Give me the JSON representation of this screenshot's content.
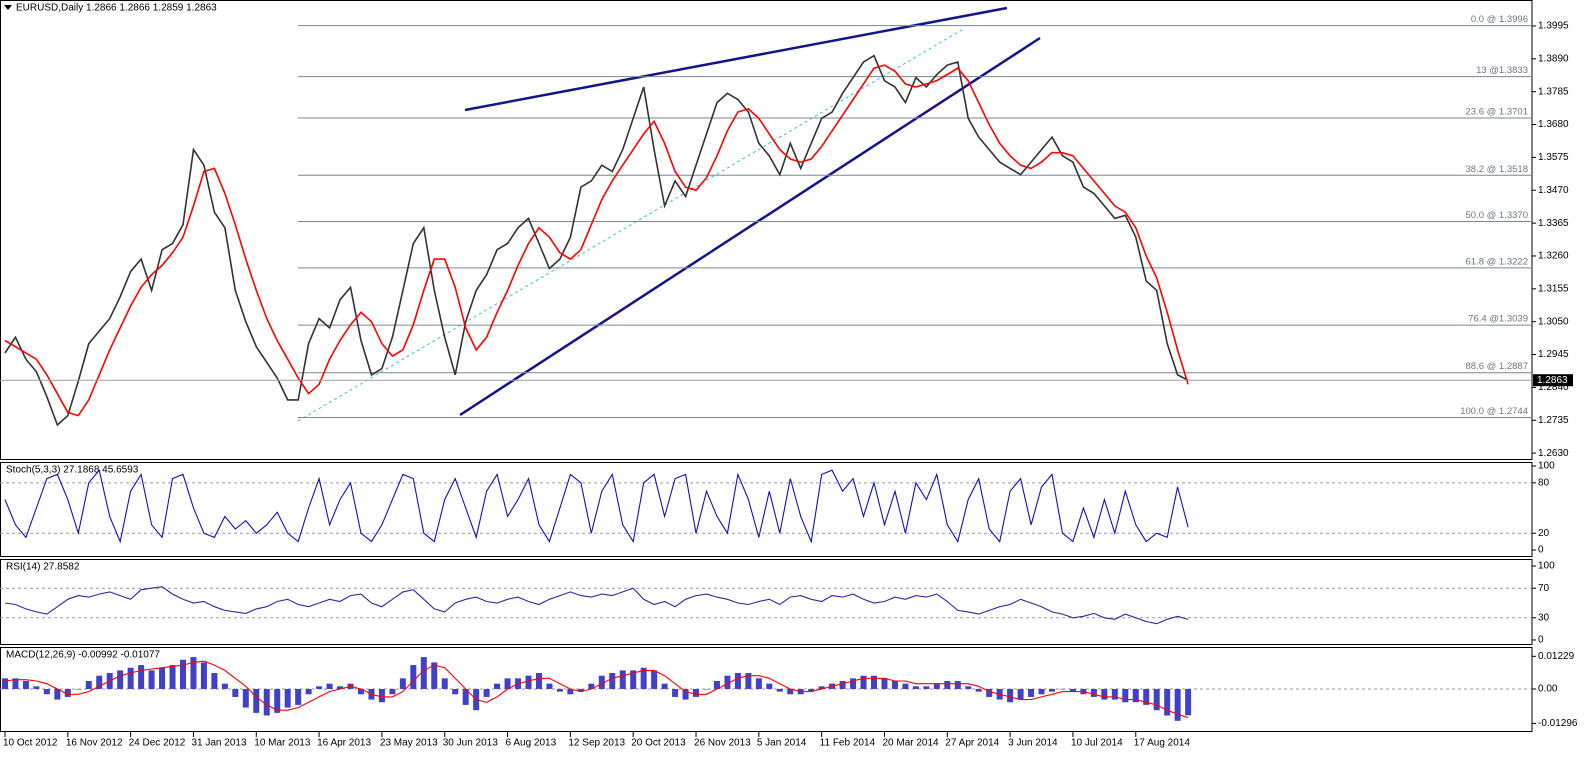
{
  "chart_data": [
    {
      "type": "line",
      "title": "EURUSD,Daily  1.2866 1.2866 1.2859 1.2863",
      "categories": [
        "10 Oct 2012",
        null,
        null,
        null,
        null,
        null,
        "16 Nov 2012",
        null,
        null,
        null,
        null,
        null,
        "24 Dec 2012",
        null,
        null,
        null,
        null,
        null,
        "31 Jan 2013",
        null,
        null,
        null,
        null,
        null,
        "10 Mar 2013",
        null,
        null,
        null,
        null,
        null,
        "16 Apr 2013",
        null,
        null,
        null,
        null,
        null,
        "23 May 2013",
        null,
        null,
        null,
        null,
        null,
        "30 Jun 2013",
        null,
        null,
        null,
        null,
        null,
        "6 Aug 2013",
        null,
        null,
        null,
        null,
        null,
        "12 Sep 2013",
        null,
        null,
        null,
        null,
        null,
        "20 Oct 2013",
        null,
        null,
        null,
        null,
        null,
        "26 Nov 2013",
        null,
        null,
        null,
        null,
        null,
        "5 Jan 2014",
        null,
        null,
        null,
        null,
        null,
        "11 Feb 2014",
        null,
        null,
        null,
        null,
        null,
        "20 Mar 2014",
        null,
        null,
        null,
        null,
        null,
        "27 Apr 2014",
        null,
        null,
        null,
        null,
        null,
        "3 Jun 2014",
        null,
        null,
        null,
        null,
        null,
        "10 Jul 2014",
        null,
        null,
        null,
        null,
        null,
        "17 Aug 2014",
        null,
        null,
        null,
        null,
        null
      ],
      "series": [
        {
          "color": "#333333",
          "values": [
            1.295,
            1.3,
            1.293,
            1.289,
            1.281,
            1.272,
            1.275,
            1.286,
            1.298,
            1.302,
            1.306,
            1.313,
            1.321,
            1.325,
            1.315,
            1.328,
            1.33,
            1.336,
            1.36,
            1.355,
            1.34,
            1.335,
            1.315,
            1.305,
            1.297,
            1.292,
            1.287,
            1.28,
            1.28,
            1.298,
            1.306,
            1.303,
            1.312,
            1.316,
            1.299,
            1.288,
            1.29,
            1.3,
            1.315,
            1.33,
            1.335,
            1.315,
            1.3,
            1.288,
            1.305,
            1.315,
            1.32,
            1.328,
            1.33,
            1.335,
            1.338,
            1.33,
            1.322,
            1.325,
            1.332,
            1.348,
            1.35,
            1.355,
            1.353,
            1.36,
            1.37,
            1.38,
            1.36,
            1.342,
            1.35,
            1.345,
            1.355,
            1.365,
            1.375,
            1.378,
            1.376,
            1.372,
            1.362,
            1.358,
            1.352,
            1.362,
            1.354,
            1.362,
            1.37,
            1.372,
            1.378,
            1.383,
            1.388,
            1.39,
            1.382,
            1.38,
            1.375,
            1.383,
            1.38,
            1.384,
            1.387,
            1.388,
            1.37,
            1.364,
            1.36,
            1.356,
            1.354,
            1.352,
            1.356,
            1.36,
            1.364,
            1.358,
            1.356,
            1.348,
            1.346,
            1.342,
            1.338,
            1.339,
            1.332,
            1.318,
            1.315,
            1.298,
            1.288,
            1.2863
          ]
        },
        {
          "color": "#ff0000",
          "values": [
            1.299,
            1.297,
            1.295,
            1.293,
            1.288,
            1.282,
            1.276,
            1.275,
            1.28,
            1.288,
            1.296,
            1.303,
            1.31,
            1.316,
            1.32,
            1.323,
            1.327,
            1.332,
            1.342,
            1.353,
            1.354,
            1.346,
            1.336,
            1.325,
            1.315,
            1.306,
            1.299,
            1.293,
            1.287,
            1.282,
            1.285,
            1.293,
            1.299,
            1.304,
            1.308,
            1.305,
            1.298,
            1.294,
            1.296,
            1.304,
            1.315,
            1.325,
            1.325,
            1.316,
            1.303,
            1.296,
            1.3,
            1.308,
            1.315,
            1.323,
            1.33,
            1.335,
            1.332,
            1.327,
            1.325,
            1.328,
            1.336,
            1.344,
            1.35,
            1.355,
            1.36,
            1.365,
            1.369,
            1.362,
            1.353,
            1.348,
            1.347,
            1.351,
            1.358,
            1.366,
            1.372,
            1.373,
            1.37,
            1.365,
            1.36,
            1.357,
            1.356,
            1.357,
            1.361,
            1.366,
            1.371,
            1.376,
            1.381,
            1.386,
            1.387,
            1.385,
            1.381,
            1.38,
            1.381,
            1.382,
            1.384,
            1.386,
            1.382,
            1.375,
            1.368,
            1.362,
            1.358,
            1.355,
            1.354,
            1.356,
            1.359,
            1.359,
            1.358,
            1.354,
            1.35,
            1.346,
            1.342,
            1.34,
            1.335,
            1.326,
            1.319,
            1.308,
            1.296,
            1.285
          ]
        }
      ],
      "ylim": [
        1.2608,
        1.4078
      ],
      "yticks": [
        1.3995,
        {
          "value": 1.389,
          "label": "1.3890"
        },
        1.3785,
        {
          "value": 1.368,
          "label": "1.3680"
        },
        1.3575,
        {
          "value": 1.347,
          "label": "1.3470"
        },
        1.3365,
        {
          "value": 1.326,
          "label": "1.3260"
        },
        1.3155,
        {
          "value": 1.305,
          "label": "1.3050"
        },
        1.2945,
        {
          "value": 1.284,
          "label": "1.2840"
        },
        1.2735,
        {
          "value": 1.263,
          "label": "1.2630"
        }
      ],
      "last_price": 1.2863,
      "levels": [
        {
          "label": "0.0 @ 1.3996",
          "value": 1.3996
        },
        {
          "label": "13 @1.3833",
          "value": 1.3833
        },
        {
          "label": "23.6 @ 1.3701",
          "value": 1.3701
        },
        {
          "label": "38.2 @ 1.3518",
          "value": 1.3518
        },
        {
          "label": "50.0 @ 1.3370",
          "value": 1.337
        },
        {
          "label": "61.8 @ 1.3222",
          "value": 1.3222
        },
        {
          "label": "76.4 @1.3039",
          "value": 1.3039
        },
        {
          "label": "88.6 @ 1.2887",
          "value": 1.2887
        },
        {
          "label": "100.0 @ 1.2744",
          "value": 1.2744
        }
      ]
    },
    {
      "type": "line",
      "title": "Stoch(5,3,3) 27.1868 45.6593",
      "series": [
        {
          "color": "#1010c0",
          "values": [
            60,
            30,
            15,
            50,
            85,
            90,
            60,
            20,
            80,
            95,
            40,
            10,
            70,
            90,
            30,
            15,
            85,
            90,
            50,
            20,
            15,
            40,
            25,
            35,
            20,
            30,
            45,
            20,
            10,
            50,
            85,
            30,
            60,
            80,
            20,
            10,
            30,
            60,
            90,
            85,
            20,
            10,
            60,
            85,
            50,
            15,
            70,
            90,
            40,
            60,
            85,
            30,
            10,
            50,
            90,
            80,
            20,
            70,
            90,
            30,
            10,
            80,
            90,
            40,
            85,
            90,
            20,
            70,
            40,
            20,
            90,
            60,
            15,
            70,
            20,
            85,
            40,
            10,
            90,
            95,
            70,
            85,
            40,
            80,
            30,
            70,
            20,
            80,
            60,
            90,
            30,
            10,
            60,
            85,
            25,
            10,
            70,
            85,
            30,
            75,
            90,
            20,
            10,
            50,
            15,
            60,
            20,
            70,
            30,
            10,
            20,
            15,
            75,
            27.1868
          ]
        }
      ],
      "ylim": [
        -8.3,
        104.8
      ],
      "yticks": [
        100,
        80,
        20,
        0
      ]
    },
    {
      "type": "line",
      "title": "RSI(14) 27.8582",
      "series": [
        {
          "color": "#2a2aa0",
          "values": [
            50,
            48,
            42,
            38,
            35,
            45,
            55,
            60,
            58,
            62,
            65,
            60,
            55,
            68,
            70,
            72,
            62,
            55,
            50,
            52,
            45,
            40,
            38,
            36,
            42,
            45,
            52,
            55,
            48,
            45,
            50,
            55,
            52,
            60,
            62,
            50,
            45,
            55,
            65,
            68,
            55,
            42,
            38,
            50,
            55,
            58,
            52,
            50,
            55,
            58,
            52,
            48,
            55,
            60,
            65,
            60,
            58,
            62,
            60,
            65,
            70,
            55,
            48,
            52,
            45,
            55,
            60,
            62,
            58,
            55,
            50,
            48,
            52,
            55,
            48,
            58,
            60,
            55,
            52,
            60,
            58,
            62,
            55,
            50,
            52,
            58,
            55,
            60,
            58,
            62,
            52,
            40,
            38,
            35,
            40,
            45,
            48,
            55,
            50,
            45,
            38,
            35,
            30,
            32,
            36,
            30,
            28,
            35,
            30,
            25,
            22,
            28,
            32,
            27.8582
          ]
        }
      ],
      "ylim": [
        -6.8,
        109.5
      ],
      "yticks": [
        100,
        70,
        30,
        0
      ]
    },
    {
      "type": "bar",
      "title": "MACD(12,26,9) -0.00992 -0.01077",
      "series": [
        {
          "color": "#4040c8",
          "values": [
            0.004,
            0.004,
            0.003,
            0.001,
            -0.002,
            -0.004,
            -0.003,
            0.0,
            0.003,
            0.005,
            0.006,
            0.007,
            0.008,
            0.009,
            0.007,
            0.008,
            0.009,
            0.011,
            0.012,
            0.01,
            0.006,
            0.002,
            -0.003,
            -0.007,
            -0.009,
            -0.01,
            -0.009,
            -0.007,
            -0.006,
            -0.002,
            0.001,
            0.002,
            0.001,
            0.002,
            -0.002,
            -0.004,
            -0.005,
            -0.002,
            0.004,
            0.009,
            0.012,
            0.01,
            0.004,
            -0.002,
            -0.006,
            -0.008,
            -0.003,
            0.002,
            0.004,
            0.004,
            0.005,
            0.006,
            0.002,
            -0.001,
            -0.002,
            -0.001,
            0.002,
            0.005,
            0.006,
            0.007,
            0.007,
            0.008,
            0.007,
            0.002,
            -0.003,
            -0.004,
            -0.003,
            0.0,
            0.003,
            0.005,
            0.006,
            0.006,
            0.004,
            0.002,
            -0.001,
            -0.002,
            -0.002,
            -0.001,
            0.001,
            0.002,
            0.003,
            0.004,
            0.005,
            0.005,
            0.004,
            0.003,
            0.002,
            0.001,
            0.001,
            0.002,
            0.003,
            0.003,
            0.001,
            -0.001,
            -0.003,
            -0.004,
            -0.005,
            -0.004,
            -0.003,
            -0.002,
            -0.001,
            0.0,
            -0.001,
            -0.002,
            -0.003,
            -0.004,
            -0.004,
            -0.005,
            -0.005,
            -0.006,
            -0.008,
            -0.01,
            -0.012,
            -0.00992
          ]
        },
        {
          "type": "line",
          "color": "#ff0000",
          "values": [
            0.003,
            0.0035,
            0.0035,
            0.003,
            0.002,
            0.0,
            -0.002,
            -0.002,
            -0.001,
            0.001,
            0.003,
            0.005,
            0.006,
            0.007,
            0.0075,
            0.008,
            0.0085,
            0.009,
            0.01,
            0.0105,
            0.009,
            0.007,
            0.004,
            0.001,
            -0.003,
            -0.006,
            -0.008,
            -0.008,
            -0.007,
            -0.005,
            -0.003,
            -0.001,
            0.0,
            0.001,
            0.0,
            -0.002,
            -0.003,
            -0.003,
            -0.001,
            0.003,
            0.007,
            0.009,
            0.008,
            0.004,
            0.0,
            -0.004,
            -0.005,
            -0.003,
            0.0,
            0.002,
            0.003,
            0.004,
            0.004,
            0.002,
            0.0,
            -0.001,
            0.0,
            0.002,
            0.004,
            0.005,
            0.006,
            0.007,
            0.007,
            0.005,
            0.002,
            -0.001,
            -0.002,
            -0.002,
            0.0,
            0.002,
            0.004,
            0.005,
            0.005,
            0.004,
            0.002,
            0.0,
            -0.001,
            -0.001,
            0.0,
            0.001,
            0.002,
            0.003,
            0.004,
            0.004,
            0.004,
            0.003,
            0.003,
            0.002,
            0.002,
            0.002,
            0.002,
            0.002,
            0.002,
            0.001,
            -0.001,
            -0.002,
            -0.003,
            -0.004,
            -0.004,
            -0.003,
            -0.002,
            -0.001,
            -0.001,
            -0.001,
            -0.002,
            -0.003,
            -0.003,
            -0.004,
            -0.004,
            -0.005,
            -0.006,
            -0.008,
            -0.0095,
            -0.01077
          ]
        }
      ],
      "ylim": [
        -0.0162,
        0.0158
      ],
      "yticks": [
        0.01229,
        {
          "value": 0,
          "label": "0.00"
        },
        -0.01296
      ]
    }
  ]
}
